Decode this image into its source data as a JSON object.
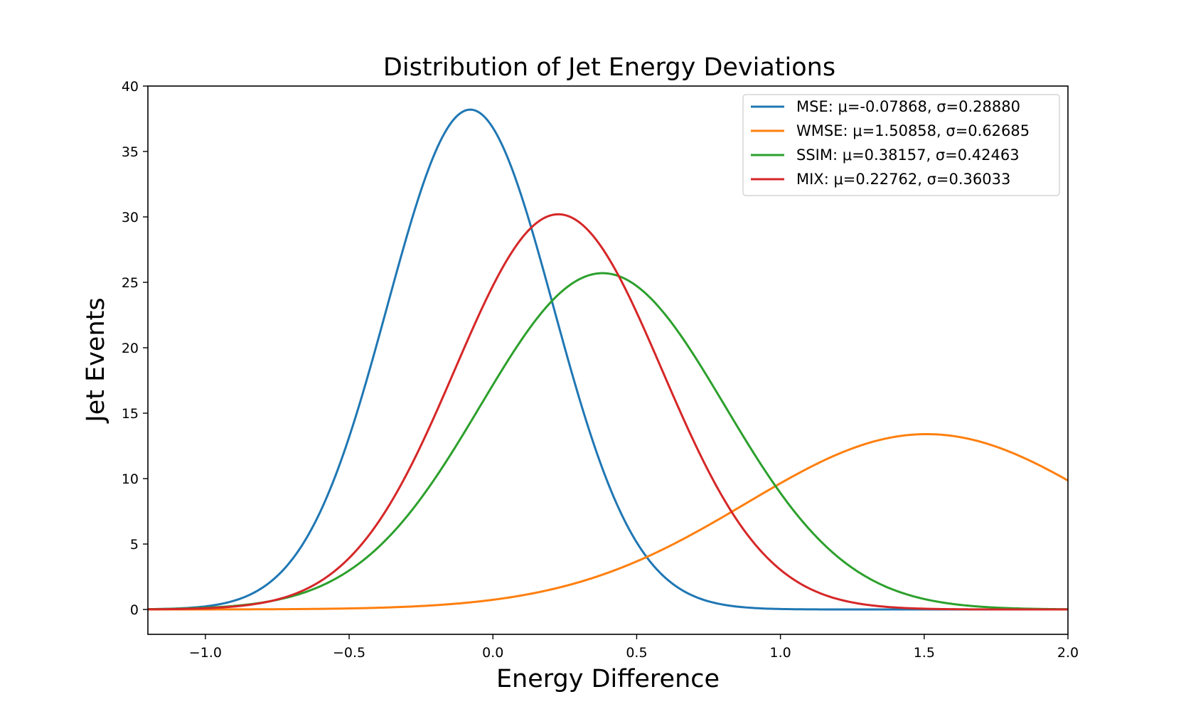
{
  "chart_data": {
    "type": "line",
    "title": "Distribution of Jet Energy Deviations",
    "xlabel": "Energy Difference",
    "ylabel": "Jet Events",
    "xlim": [
      -1.2,
      2.0
    ],
    "ylim": [
      -1.9,
      40
    ],
    "xticks": [
      {
        "value": -1.0,
        "label": "−1.0"
      },
      {
        "value": -0.5,
        "label": "−0.5"
      },
      {
        "value": 0.0,
        "label": "0.0"
      },
      {
        "value": 0.5,
        "label": "0.5"
      },
      {
        "value": 1.0,
        "label": "1.0"
      },
      {
        "value": 1.5,
        "label": "1.5"
      },
      {
        "value": 2.0,
        "label": "2.0"
      }
    ],
    "yticks": [
      {
        "value": 0,
        "label": "0"
      },
      {
        "value": 5,
        "label": "5"
      },
      {
        "value": 10,
        "label": "10"
      },
      {
        "value": 15,
        "label": "15"
      },
      {
        "value": 20,
        "label": "20"
      },
      {
        "value": 25,
        "label": "25"
      },
      {
        "value": 30,
        "label": "30"
      },
      {
        "value": 35,
        "label": "35"
      },
      {
        "value": 40,
        "label": "40"
      }
    ],
    "grid": false,
    "legend_position": "top-right",
    "series": [
      {
        "name": "MSE: μ=-0.07868, σ=0.28880",
        "key": "mse",
        "color": "#1f77b4",
        "mu": -0.07868,
        "sigma": 0.2888,
        "peak": 38.2
      },
      {
        "name": "WMSE: μ=1.50858, σ=0.62685",
        "key": "wmse",
        "color": "#ff7f0e",
        "mu": 1.50858,
        "sigma": 0.62685,
        "peak": 13.4
      },
      {
        "name": "SSIM: μ=0.38157, σ=0.42463",
        "key": "ssim",
        "color": "#2ca02c",
        "mu": 0.38157,
        "sigma": 0.42463,
        "peak": 25.7
      },
      {
        "name": "MIX: μ=0.22762, σ=0.36033",
        "key": "mix",
        "color": "#d62728",
        "mu": 0.22762,
        "sigma": 0.36033,
        "peak": 30.2
      }
    ]
  }
}
